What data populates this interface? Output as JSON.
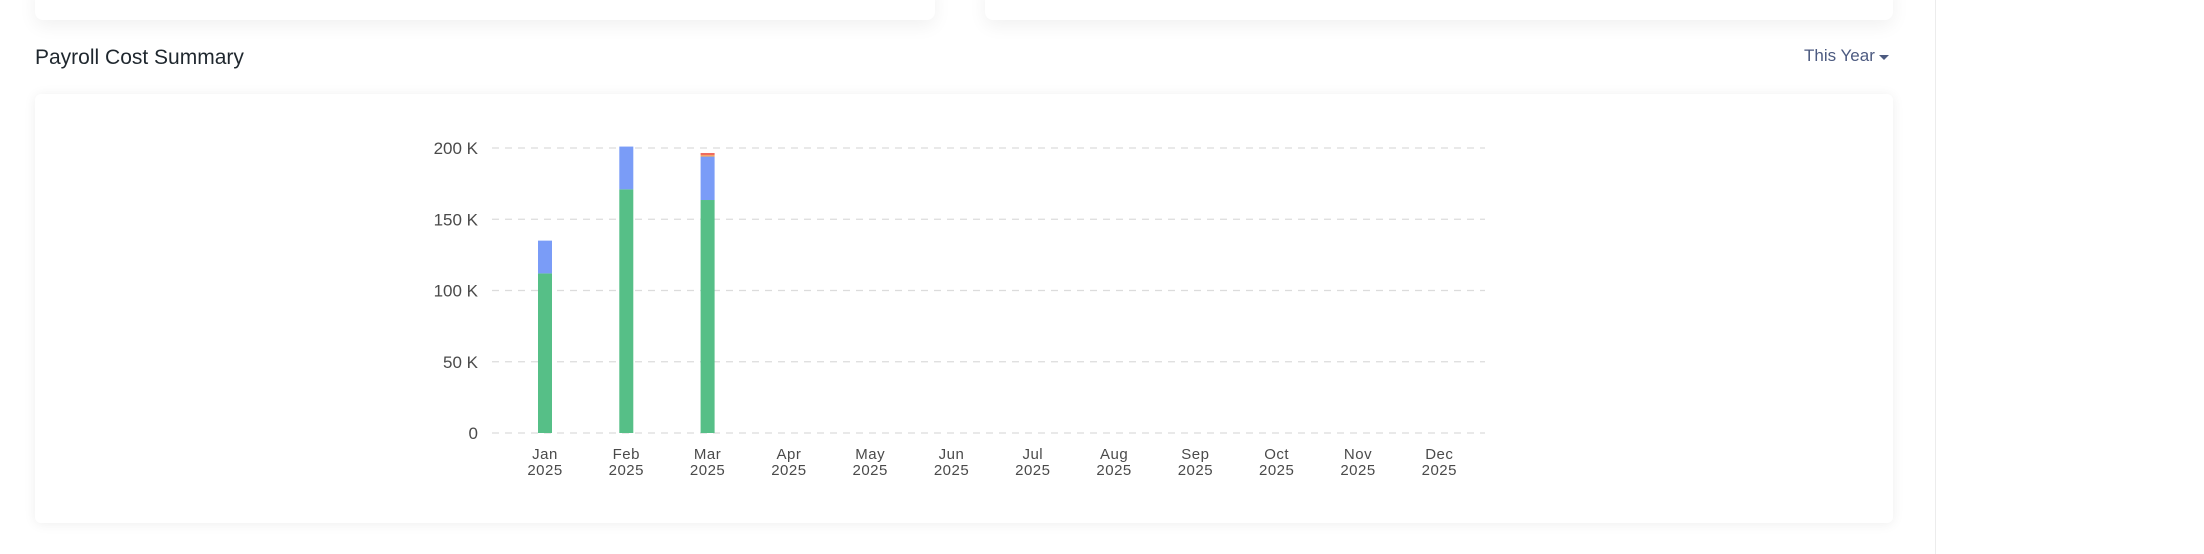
{
  "header": {
    "title": "Payroll Cost Summary",
    "period_label": "This Year"
  },
  "colors": {
    "series": [
      "#56bf87",
      "#7a9cf7",
      "#f5a55a",
      "#ef6b5e"
    ],
    "grid": "#dcdcdc"
  },
  "chart_data": {
    "type": "bar",
    "stacked": true,
    "categories": [
      "Jan",
      "Feb",
      "Mar",
      "Apr",
      "May",
      "Jun",
      "Jul",
      "Aug",
      "Sep",
      "Oct",
      "Nov",
      "Dec"
    ],
    "category_years": [
      "2025",
      "2025",
      "2025",
      "2025",
      "2025",
      "2025",
      "2025",
      "2025",
      "2025",
      "2025",
      "2025",
      "2025"
    ],
    "series": [
      {
        "values": [
          112000,
          171000,
          163500,
          0,
          0,
          0,
          0,
          0,
          0,
          0,
          0,
          0
        ]
      },
      {
        "values": [
          23000,
          30000,
          30500,
          0,
          0,
          0,
          0,
          0,
          0,
          0,
          0,
          0
        ]
      },
      {
        "values": [
          0,
          0,
          1000,
          0,
          0,
          0,
          0,
          0,
          0,
          0,
          0,
          0
        ]
      },
      {
        "values": [
          0,
          0,
          1500,
          0,
          0,
          0,
          0,
          0,
          0,
          0,
          0,
          0
        ]
      }
    ],
    "yticks": [
      0,
      50000,
      100000,
      150000,
      200000
    ],
    "ytick_labels": [
      "0",
      "50 K",
      "100 K",
      "150 K",
      "200 K"
    ],
    "ylim": [
      0,
      200000
    ],
    "grid": true,
    "legend": "none"
  }
}
